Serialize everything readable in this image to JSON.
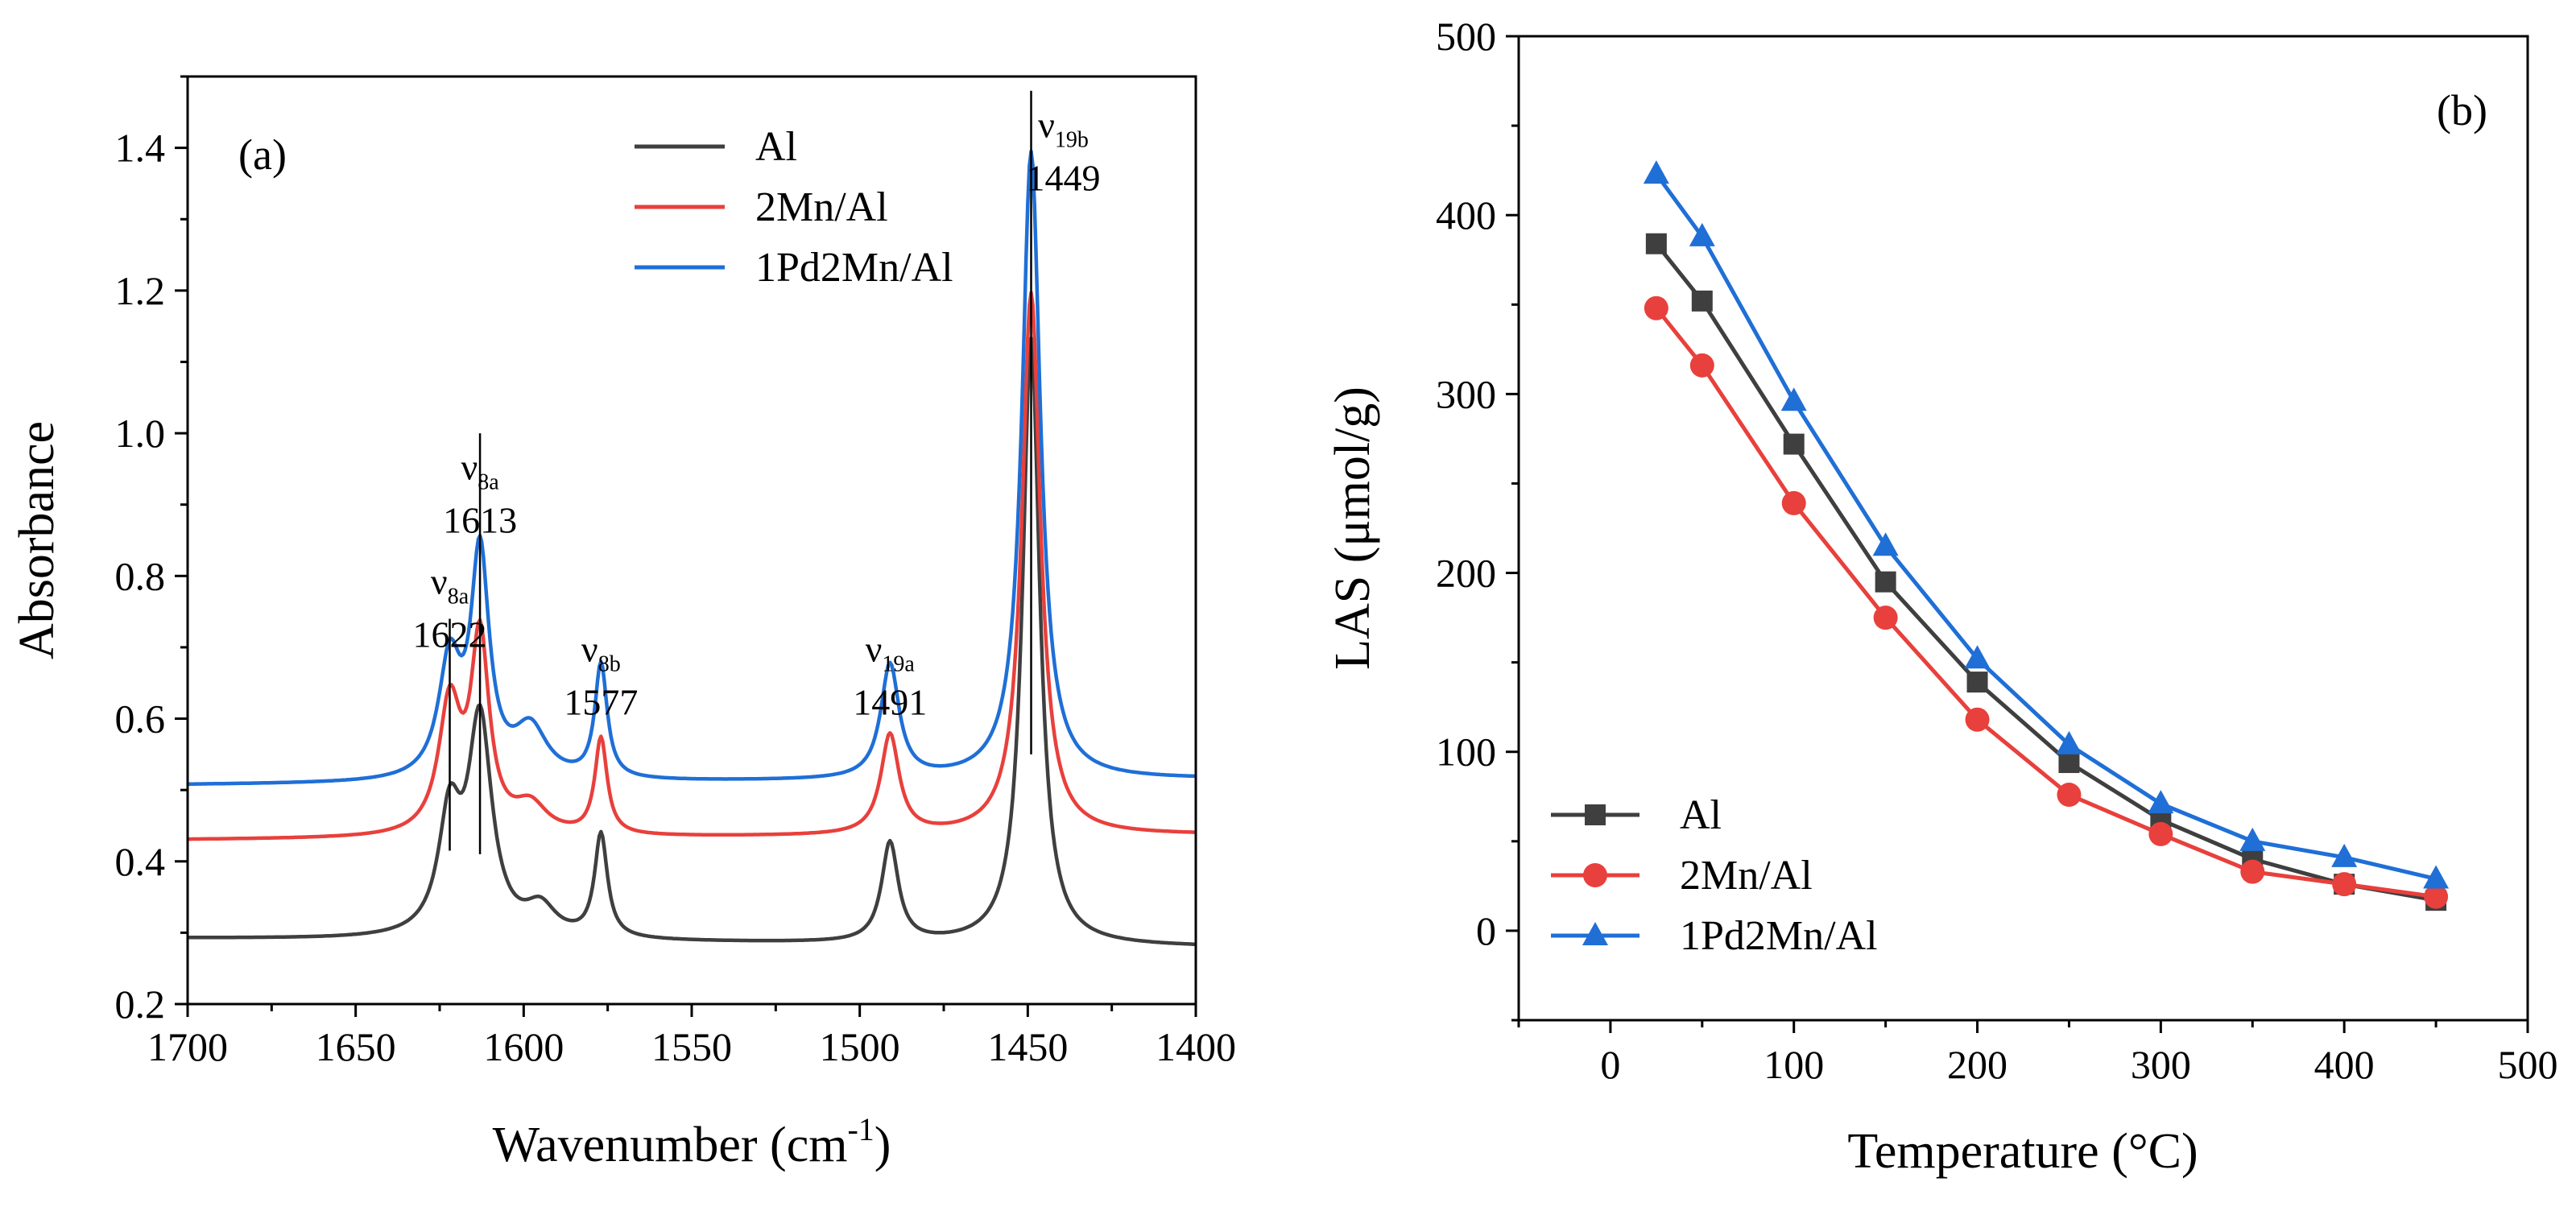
{
  "colors": {
    "al": "#3f3f3f",
    "mn": "#e8403c",
    "pd": "#1f6fd6",
    "axis": "#000000"
  },
  "chart_data": [
    {
      "type": "line",
      "panel_label": "(a)",
      "xlabel": "Wavenumber (cm",
      "xlabel_sup": "-1",
      "xlabel_close": ")",
      "ylabel": "Absorbance",
      "xlim": [
        1700,
        1400
      ],
      "ylim": [
        0.2,
        1.5
      ],
      "xticks": [
        1700,
        1650,
        1600,
        1550,
        1500,
        1450,
        1400
      ],
      "xtick_labels": [
        "1700",
        "1650",
        "1600",
        "1550",
        "1500",
        "1450",
        "1400"
      ],
      "yticks": [
        0.2,
        0.4,
        0.6,
        0.8,
        1.0,
        1.2,
        1.4
      ],
      "ytick_labels": [
        "0.2",
        "0.4",
        "0.6",
        "0.8",
        "1.0",
        "1.2",
        "1.4"
      ],
      "legend_position": "top-center",
      "series": [
        {
          "name": "Al",
          "color": "#3f3f3f",
          "baseline_start": 0.292,
          "baseline_end": 0.28,
          "peaks": [
            [
              1622,
              0.16,
              4.0
            ],
            [
              1613,
              0.3,
              4.3
            ],
            [
              1595,
              0.04,
              5.5
            ],
            [
              1577,
              0.145,
              2.3
            ],
            [
              1491,
              0.14,
              3.0
            ],
            [
              1449,
              0.85,
              3.1
            ]
          ]
        },
        {
          "name": "2Mn/Al",
          "color": "#e8403c",
          "baseline_start": 0.43,
          "baseline_end": 0.437,
          "peaks": [
            [
              1622,
              0.18,
              4.0
            ],
            [
              1613,
              0.27,
              3.3
            ],
            [
              1598,
              0.04,
              6.0
            ],
            [
              1577,
              0.135,
              2.2
            ],
            [
              1491,
              0.14,
              3.3
            ],
            [
              1449,
              0.76,
              3.3
            ]
          ]
        },
        {
          "name": "1Pd2Mn/Al",
          "color": "#1f6fd6",
          "baseline_start": 0.507,
          "baseline_end": 0.515,
          "peaks": [
            [
              1622,
              0.16,
              4.0
            ],
            [
              1613,
              0.31,
              3.3
            ],
            [
              1598,
              0.07,
              6.0
            ],
            [
              1577,
              0.16,
              2.2
            ],
            [
              1491,
              0.16,
              3.3
            ],
            [
              1449,
              0.88,
              3.3
            ]
          ]
        }
      ],
      "annotations": [
        {
          "name": "nu8a-1622",
          "symbol": "ν",
          "sub": "8a",
          "value": "1622",
          "x": 1622,
          "y_label": 0.775,
          "line_from": 0.415,
          "line_to": 0.74
        },
        {
          "name": "nu8a-1613",
          "symbol": "ν",
          "sub": "8a",
          "value": "1613",
          "x": 1613,
          "y_label": 0.935,
          "line_from": 0.41,
          "line_to": 1.0
        },
        {
          "name": "nu8b-1577",
          "symbol": "ν",
          "sub": "8b",
          "value": "1577",
          "x": 1577,
          "y_label": 0.68,
          "line_from": null,
          "line_to": null
        },
        {
          "name": "nu19a-1491",
          "symbol": "ν",
          "sub": "19a",
          "value": "1491",
          "x": 1491,
          "y_label": 0.68,
          "line_from": null,
          "line_to": null
        },
        {
          "name": "nu19b-1449",
          "symbol": "ν",
          "sub": "19b",
          "value": "1449",
          "x": 1449,
          "y_label": 1.415,
          "line_from": 0.55,
          "line_to": 1.48
        }
      ]
    },
    {
      "type": "line",
      "panel_label": "(b)",
      "xlabel": "Temperature (°C)",
      "ylabel": "LAS (μmol/g)",
      "xlim": [
        -50,
        500
      ],
      "ylim": [
        -50,
        500
      ],
      "xticks": [
        0,
        100,
        200,
        300,
        400,
        500
      ],
      "xtick_labels": [
        "0",
        "100",
        "200",
        "300",
        "400",
        "500"
      ],
      "yticks": [
        0,
        100,
        200,
        300,
        400,
        500
      ],
      "ytick_labels": [
        "0",
        "100",
        "200",
        "300",
        "400",
        "500"
      ],
      "legend_position": "bottom-left",
      "x": [
        25,
        50,
        100,
        150,
        200,
        250,
        300,
        350,
        400,
        450
      ],
      "series": [
        {
          "name": "Al",
          "color": "#3f3f3f",
          "marker": "square",
          "values": [
            384,
            352,
            272,
            195,
            139,
            94,
            62,
            40,
            26,
            17
          ]
        },
        {
          "name": "2Mn/Al",
          "color": "#e8403c",
          "marker": "circle",
          "values": [
            348,
            316,
            239,
            175,
            118,
            76,
            54,
            33,
            26,
            19
          ]
        },
        {
          "name": "1Pd2Mn/Al",
          "color": "#1f6fd6",
          "marker": "triangle",
          "values": [
            423,
            388,
            296,
            215,
            152,
            104,
            71,
            50,
            41,
            29
          ]
        }
      ]
    }
  ]
}
